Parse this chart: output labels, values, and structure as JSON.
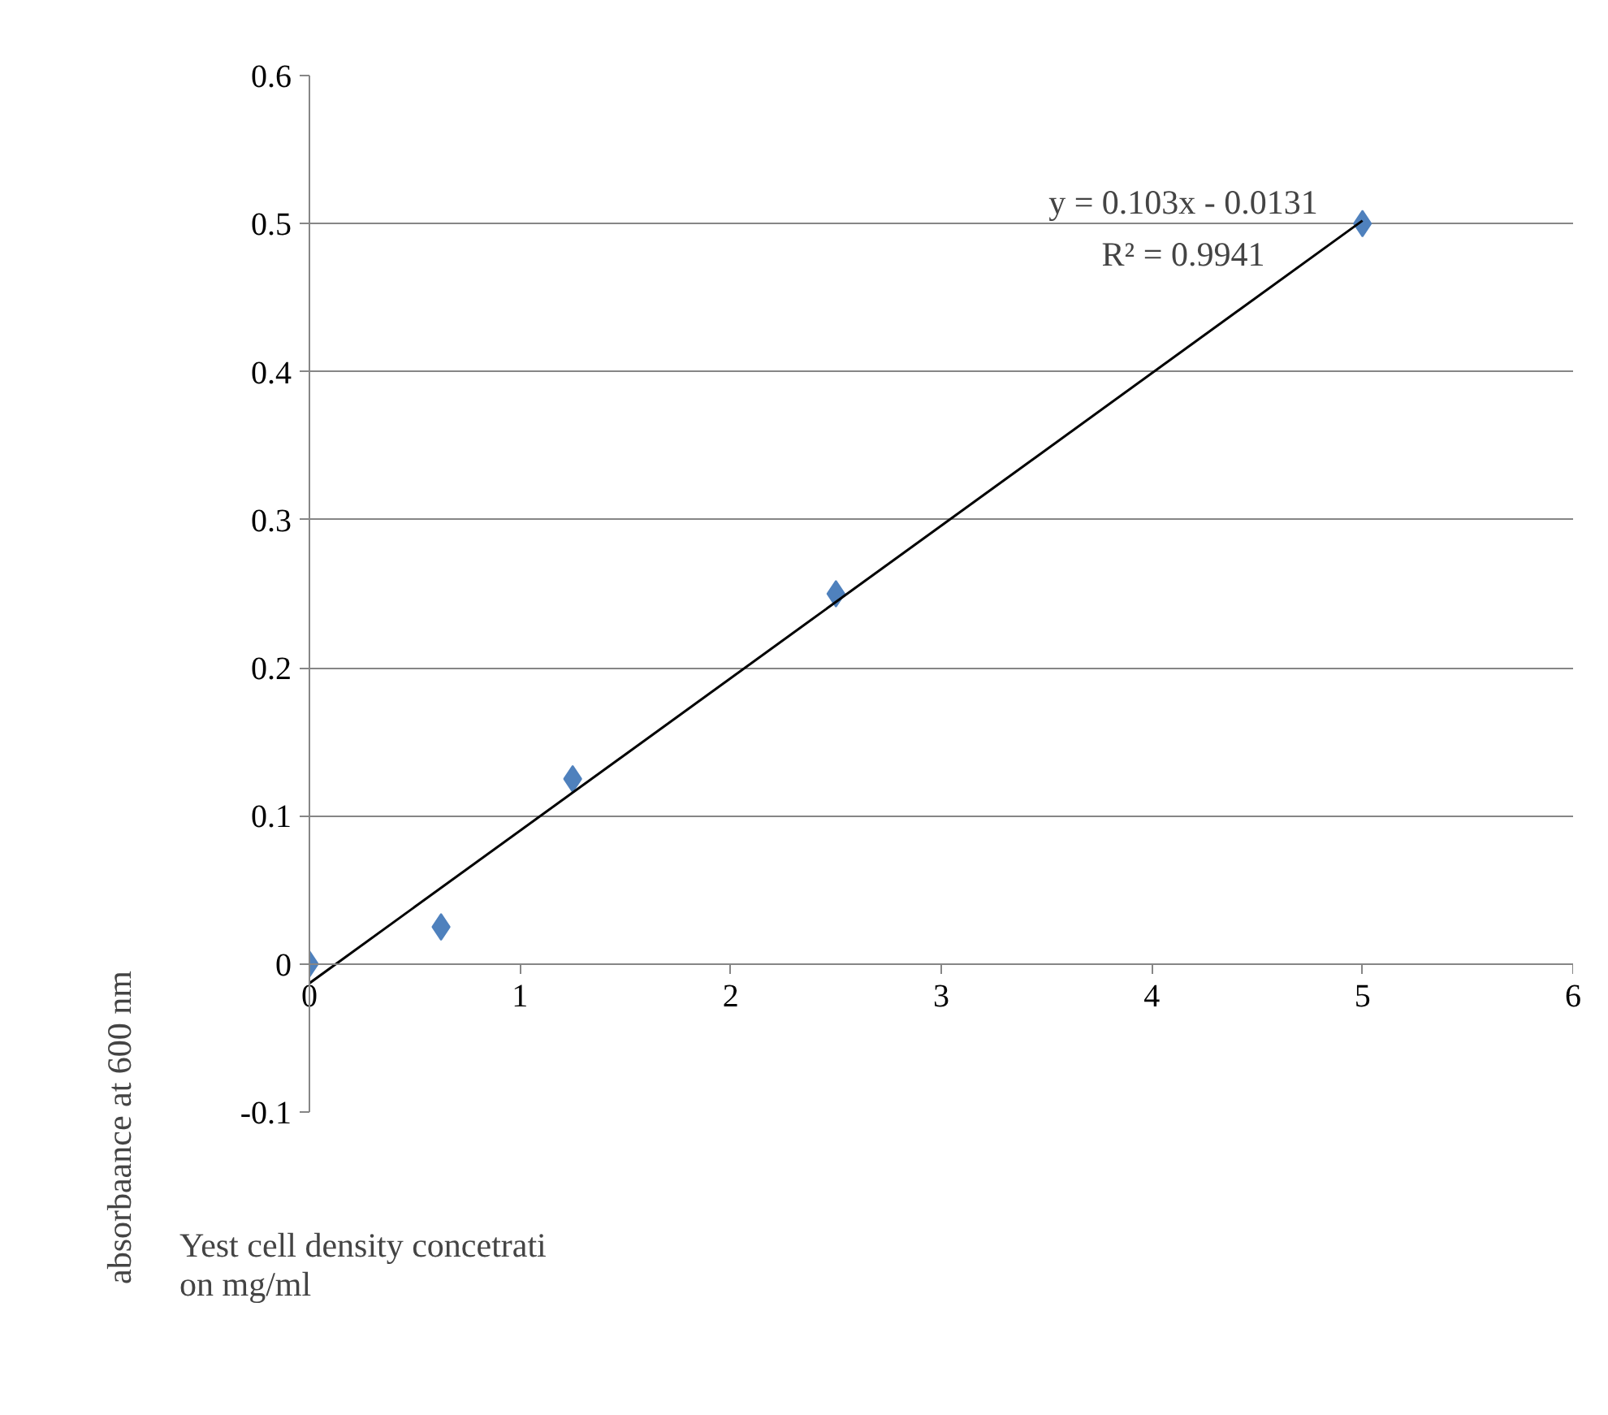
{
  "chart_data": {
    "type": "scatter",
    "xlabel": "Yest cell density concetrati\non mg/ml",
    "ylabel": "absorbaance at 600 nm",
    "x": [
      0,
      0.625,
      1.25,
      2.5,
      5
    ],
    "series": [
      {
        "color": "#4f81bd",
        "marker": "diamond",
        "values": [
          0,
          0.025,
          0.125,
          0.25,
          0.5
        ]
      },
      {
        "type": "line",
        "color": "#000000",
        "x": [
          0,
          5
        ],
        "values": [
          -0.013,
          0.502
        ]
      }
    ],
    "grid": "y",
    "xlim": [
      0,
      6
    ],
    "xticks": [
      0,
      1,
      2,
      3,
      4,
      5,
      6
    ],
    "ylim": [
      -0.1,
      0.6
    ],
    "yticks": [
      -0.1,
      0,
      0.1,
      0.2,
      0.3,
      0.4,
      0.5,
      0.6
    ],
    "annotations": [
      "y = 0.103x - 0.0131",
      "R² = 0.9941"
    ]
  }
}
